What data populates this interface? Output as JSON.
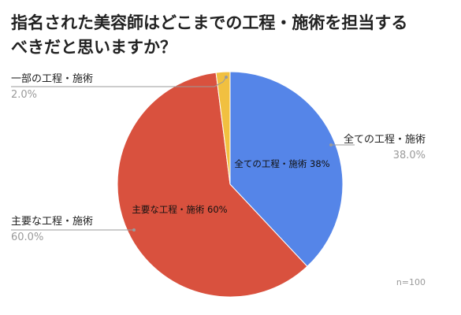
{
  "chart_data": {
    "type": "pie",
    "title_lines": [
      "指名された美容師はどこまでの工程・施術を担当する",
      "べきだと思いますか？"
    ],
    "note": "n=100",
    "slices": [
      {
        "name": "全ての工程・施術",
        "value": 38.0,
        "percent_label": "38.0%",
        "inner_label": "全ての工程・施術 38%",
        "color": "#5585e8"
      },
      {
        "name": "主要な工程・施術",
        "value": 60.0,
        "percent_label": "60.0%",
        "inner_label": "主要な工程・施術 60%",
        "color": "#d9513e"
      },
      {
        "name": "一部の工程・施術",
        "value": 2.0,
        "percent_label": "2.0%",
        "inner_label": "",
        "color": "#f1c040"
      }
    ]
  }
}
